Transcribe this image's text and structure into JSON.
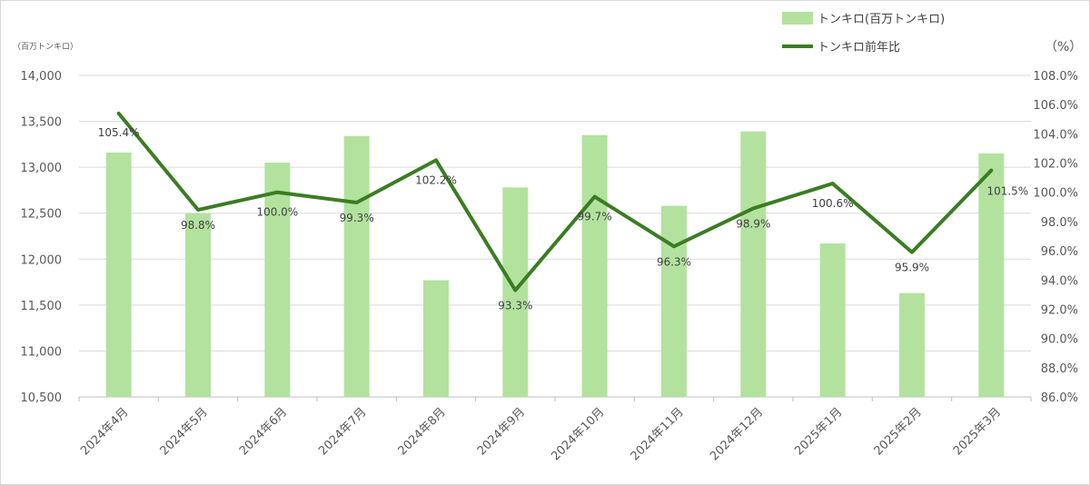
{
  "chart_data": {
    "type": "bar",
    "categories": [
      "2024年4月",
      "2024年5月",
      "2024年6月",
      "2024年7月",
      "2024年8月",
      "2024年9月",
      "2024年10月",
      "2024年11月",
      "2024年12月",
      "2025年1月",
      "2025年2月",
      "2025年3月"
    ],
    "series": [
      {
        "name": "トンキロ(百万トンキロ)",
        "type": "bar",
        "axis": "left",
        "color": "#b3e29f",
        "values": [
          13160,
          12500,
          13050,
          13340,
          11770,
          12780,
          13350,
          12580,
          13390,
          12170,
          11630,
          13150
        ]
      },
      {
        "name": "トンキロ前年比",
        "type": "line",
        "axis": "right",
        "color": "#3a7d22",
        "values": [
          105.4,
          98.8,
          100.0,
          99.3,
          102.2,
          93.3,
          99.7,
          96.3,
          98.9,
          100.6,
          95.9,
          101.5
        ],
        "labels": [
          "105.4%",
          "98.8%",
          "100.0%",
          "99.3%",
          "102.2%",
          "93.3%",
          "99.7%",
          "96.3%",
          "98.9%",
          "100.6%",
          "95.9%",
          "101.5%"
        ]
      }
    ],
    "y_left": {
      "unit": "（百万トンキロ）",
      "ylim": [
        10500,
        14000
      ],
      "ticks": [
        10500,
        11000,
        11500,
        12000,
        12500,
        13000,
        13500,
        14000
      ],
      "tick_labels": [
        "10,500",
        "11,000",
        "11,500",
        "12,000",
        "12,500",
        "13,000",
        "13,500",
        "14,000"
      ]
    },
    "y_right": {
      "unit": "（%）",
      "ylim": [
        86.0,
        108.0
      ],
      "ticks": [
        86,
        88,
        90,
        92,
        94,
        96,
        98,
        100,
        102,
        104,
        106,
        108
      ],
      "tick_labels": [
        "86.0%",
        "88.0%",
        "90.0%",
        "92.0%",
        "94.0%",
        "96.0%",
        "98.0%",
        "100.0%",
        "102.0%",
        "104.0%",
        "106.0%",
        "108.0%"
      ]
    },
    "grid": true,
    "legend_position": "top-right"
  }
}
